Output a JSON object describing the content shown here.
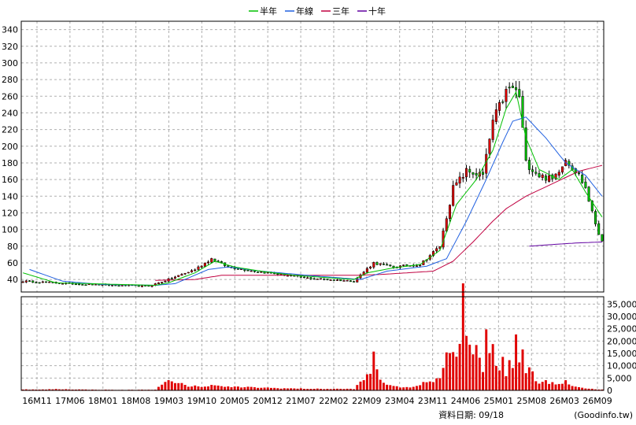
{
  "chart_data": [
    {
      "type": "candlestick",
      "legend": [
        {
          "label": "半年",
          "color": "#00c000"
        },
        {
          "label": "年線",
          "color": "#2060e0"
        },
        {
          "label": "三年",
          "color": "#c00040"
        },
        {
          "label": "十年",
          "color": "#6000a0"
        }
      ],
      "x_tick_labels": [
        "16M11",
        "17M06",
        "18M01",
        "18M08",
        "19M03",
        "19M10",
        "20M05",
        "20M12",
        "21M07",
        "22M02",
        "22M09",
        "23M04",
        "23M11",
        "24M06",
        "25M01",
        "25M08",
        "26M03",
        "26M09"
      ],
      "y_ticks": [
        40,
        60,
        80,
        100,
        120,
        140,
        160,
        180,
        200,
        220,
        240,
        260,
        280,
        300,
        320,
        340
      ],
      "ylim": [
        25,
        350
      ],
      "grid": true,
      "price_keyframes": [
        [
          0,
          38
        ],
        [
          10,
          36
        ],
        [
          20,
          34
        ],
        [
          28,
          33
        ],
        [
          38,
          32
        ],
        [
          44,
          40
        ],
        [
          52,
          52
        ],
        [
          57,
          65
        ],
        [
          62,
          55
        ],
        [
          70,
          50
        ],
        [
          80,
          45
        ],
        [
          85,
          42
        ],
        [
          100,
          38
        ],
        [
          106,
          60
        ],
        [
          112,
          55
        ],
        [
          120,
          58
        ],
        [
          126,
          80
        ],
        [
          130,
          150
        ],
        [
          134,
          170
        ],
        [
          139,
          165
        ],
        [
          142,
          230
        ],
        [
          146,
          265
        ],
        [
          148,
          270
        ],
        [
          150,
          260
        ],
        [
          152,
          180
        ],
        [
          156,
          165
        ],
        [
          160,
          160
        ],
        [
          164,
          185
        ],
        [
          168,
          165
        ],
        [
          170,
          150
        ],
        [
          172,
          120
        ],
        [
          174,
          95
        ],
        [
          175,
          88
        ]
      ],
      "ma_half_keyframes": [
        [
          0,
          48
        ],
        [
          10,
          36
        ],
        [
          20,
          35
        ],
        [
          40,
          33
        ],
        [
          44,
          36
        ],
        [
          52,
          48
        ],
        [
          58,
          62
        ],
        [
          64,
          55
        ],
        [
          72,
          50
        ],
        [
          82,
          45
        ],
        [
          100,
          40
        ],
        [
          104,
          48
        ],
        [
          112,
          54
        ],
        [
          120,
          58
        ],
        [
          126,
          75
        ],
        [
          131,
          130
        ],
        [
          137,
          160
        ],
        [
          142,
          195
        ],
        [
          146,
          245
        ],
        [
          149,
          265
        ],
        [
          152,
          210
        ],
        [
          156,
          172
        ],
        [
          162,
          160
        ],
        [
          166,
          172
        ],
        [
          170,
          145
        ],
        [
          175,
          115
        ]
      ],
      "ma_year_keyframes": [
        [
          2,
          52
        ],
        [
          12,
          38
        ],
        [
          24,
          34
        ],
        [
          40,
          33
        ],
        [
          46,
          35
        ],
        [
          56,
          52
        ],
        [
          62,
          55
        ],
        [
          72,
          50
        ],
        [
          86,
          45
        ],
        [
          102,
          40
        ],
        [
          110,
          50
        ],
        [
          122,
          56
        ],
        [
          128,
          65
        ],
        [
          134,
          110
        ],
        [
          140,
          160
        ],
        [
          145,
          205
        ],
        [
          148,
          230
        ],
        [
          152,
          235
        ],
        [
          158,
          210
        ],
        [
          164,
          180
        ],
        [
          170,
          165
        ],
        [
          175,
          140
        ]
      ],
      "ma_3y_keyframes": [
        [
          40,
          39
        ],
        [
          52,
          40
        ],
        [
          60,
          45
        ],
        [
          80,
          45
        ],
        [
          100,
          45
        ],
        [
          108,
          46
        ],
        [
          124,
          50
        ],
        [
          130,
          62
        ],
        [
          136,
          85
        ],
        [
          142,
          110
        ],
        [
          146,
          125
        ],
        [
          152,
          140
        ],
        [
          160,
          155
        ],
        [
          168,
          170
        ],
        [
          175,
          177
        ]
      ],
      "ma_10y_keyframes": [
        [
          153,
          80
        ],
        [
          160,
          82
        ],
        [
          168,
          84
        ],
        [
          175,
          85
        ]
      ]
    },
    {
      "type": "bar",
      "series_name": "volume",
      "y_ticks": [
        0,
        5000,
        10000,
        15000,
        20000,
        25000,
        30000,
        35000
      ],
      "y_tick_labels": [
        "0",
        "5,000",
        "10,000",
        "15,000",
        "20,000",
        "25,000",
        "30,000",
        "35,000"
      ],
      "ylim": [
        0,
        38000
      ],
      "volume_keyframes": [
        [
          0,
          400
        ],
        [
          5,
          300
        ],
        [
          10,
          500
        ],
        [
          20,
          300
        ],
        [
          30,
          200
        ],
        [
          40,
          300
        ],
        [
          44,
          4000
        ],
        [
          46,
          2500
        ],
        [
          48,
          3500
        ],
        [
          50,
          1500
        ],
        [
          52,
          1800
        ],
        [
          54,
          1200
        ],
        [
          56,
          2000
        ],
        [
          58,
          2500
        ],
        [
          60,
          1500
        ],
        [
          70,
          1200
        ],
        [
          80,
          800
        ],
        [
          90,
          600
        ],
        [
          100,
          600
        ],
        [
          105,
          7000
        ],
        [
          106,
          14500
        ],
        [
          107,
          9000
        ],
        [
          108,
          4500
        ],
        [
          110,
          2500
        ],
        [
          112,
          1500
        ],
        [
          118,
          1200
        ],
        [
          122,
          3500
        ],
        [
          124,
          4000
        ],
        [
          126,
          6000
        ],
        [
          128,
          14000
        ],
        [
          130,
          15000
        ],
        [
          132,
          19000
        ],
        [
          133,
          38000
        ],
        [
          134,
          27000
        ],
        [
          135,
          19000
        ],
        [
          136,
          17000
        ],
        [
          137,
          16000
        ],
        [
          138,
          14000
        ],
        [
          139,
          9000
        ],
        [
          140,
          25000
        ],
        [
          141,
          15000
        ],
        [
          142,
          20000
        ],
        [
          143,
          10000
        ],
        [
          144,
          9000
        ],
        [
          145,
          16000
        ],
        [
          146,
          6000
        ],
        [
          147,
          11000
        ],
        [
          148,
          8000
        ],
        [
          149,
          19000
        ],
        [
          150,
          12000
        ],
        [
          151,
          17000
        ],
        [
          152,
          7000
        ],
        [
          153,
          9000
        ],
        [
          154,
          8000
        ],
        [
          155,
          4000
        ],
        [
          156,
          3000
        ],
        [
          158,
          3500
        ],
        [
          160,
          3000
        ],
        [
          162,
          2500
        ],
        [
          164,
          3500
        ],
        [
          166,
          2000
        ],
        [
          170,
          800
        ],
        [
          175,
          300
        ]
      ]
    }
  ],
  "footer": {
    "date_label": "資料日期: 09/18",
    "source": "(Goodinfo.tw)"
  }
}
